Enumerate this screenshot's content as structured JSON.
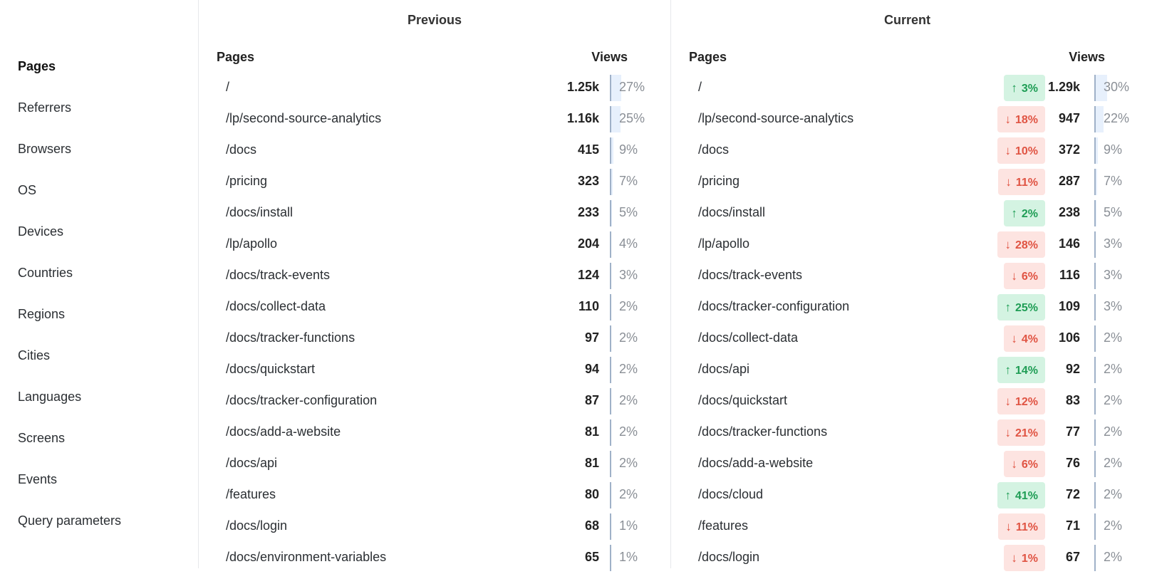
{
  "sidebar": {
    "items": [
      {
        "label": "Pages",
        "active": true
      },
      {
        "label": "Referrers"
      },
      {
        "label": "Browsers"
      },
      {
        "label": "OS"
      },
      {
        "label": "Devices"
      },
      {
        "label": "Countries"
      },
      {
        "label": "Regions"
      },
      {
        "label": "Cities"
      },
      {
        "label": "Languages"
      },
      {
        "label": "Screens"
      },
      {
        "label": "Events"
      },
      {
        "label": "Query parameters"
      }
    ]
  },
  "previous": {
    "title": "Previous",
    "col_pages": "Pages",
    "col_views": "Views",
    "rows": [
      {
        "path": "/",
        "views": "1.25k",
        "pct": "27%",
        "share": 27
      },
      {
        "path": "/lp/second-source-analytics",
        "views": "1.16k",
        "pct": "25%",
        "share": 25
      },
      {
        "path": "/docs",
        "views": "415",
        "pct": "9%",
        "share": 9
      },
      {
        "path": "/pricing",
        "views": "323",
        "pct": "7%",
        "share": 7
      },
      {
        "path": "/docs/install",
        "views": "233",
        "pct": "5%",
        "share": 5
      },
      {
        "path": "/lp/apollo",
        "views": "204",
        "pct": "4%",
        "share": 4
      },
      {
        "path": "/docs/track-events",
        "views": "124",
        "pct": "3%",
        "share": 3
      },
      {
        "path": "/docs/collect-data",
        "views": "110",
        "pct": "2%",
        "share": 2
      },
      {
        "path": "/docs/tracker-functions",
        "views": "97",
        "pct": "2%",
        "share": 2
      },
      {
        "path": "/docs/quickstart",
        "views": "94",
        "pct": "2%",
        "share": 2
      },
      {
        "path": "/docs/tracker-configuration",
        "views": "87",
        "pct": "2%",
        "share": 2
      },
      {
        "path": "/docs/add-a-website",
        "views": "81",
        "pct": "2%",
        "share": 2
      },
      {
        "path": "/docs/api",
        "views": "81",
        "pct": "2%",
        "share": 2
      },
      {
        "path": "/features",
        "views": "80",
        "pct": "2%",
        "share": 2
      },
      {
        "path": "/docs/login",
        "views": "68",
        "pct": "1%",
        "share": 1
      },
      {
        "path": "/docs/environment-variables",
        "views": "65",
        "pct": "1%",
        "share": 1
      }
    ]
  },
  "current": {
    "title": "Current",
    "col_pages": "Pages",
    "col_views": "Views",
    "rows": [
      {
        "path": "/",
        "change": "3%",
        "dir": "up",
        "views": "1.29k",
        "pct": "30%",
        "share": 30
      },
      {
        "path": "/lp/second-source-analytics",
        "change": "18%",
        "dir": "down",
        "views": "947",
        "pct": "22%",
        "share": 22
      },
      {
        "path": "/docs",
        "change": "10%",
        "dir": "down",
        "views": "372",
        "pct": "9%",
        "share": 9
      },
      {
        "path": "/pricing",
        "change": "11%",
        "dir": "down",
        "views": "287",
        "pct": "7%",
        "share": 7
      },
      {
        "path": "/docs/install",
        "change": "2%",
        "dir": "up",
        "views": "238",
        "pct": "5%",
        "share": 5
      },
      {
        "path": "/lp/apollo",
        "change": "28%",
        "dir": "down",
        "views": "146",
        "pct": "3%",
        "share": 3
      },
      {
        "path": "/docs/track-events",
        "change": "6%",
        "dir": "down",
        "views": "116",
        "pct": "3%",
        "share": 3
      },
      {
        "path": "/docs/tracker-configuration",
        "change": "25%",
        "dir": "up",
        "views": "109",
        "pct": "3%",
        "share": 3
      },
      {
        "path": "/docs/collect-data",
        "change": "4%",
        "dir": "down",
        "views": "106",
        "pct": "2%",
        "share": 2
      },
      {
        "path": "/docs/api",
        "change": "14%",
        "dir": "up",
        "views": "92",
        "pct": "2%",
        "share": 2
      },
      {
        "path": "/docs/quickstart",
        "change": "12%",
        "dir": "down",
        "views": "83",
        "pct": "2%",
        "share": 2
      },
      {
        "path": "/docs/tracker-functions",
        "change": "21%",
        "dir": "down",
        "views": "77",
        "pct": "2%",
        "share": 2
      },
      {
        "path": "/docs/add-a-website",
        "change": "6%",
        "dir": "down",
        "views": "76",
        "pct": "2%",
        "share": 2
      },
      {
        "path": "/docs/cloud",
        "change": "41%",
        "dir": "up",
        "views": "72",
        "pct": "2%",
        "share": 2
      },
      {
        "path": "/features",
        "change": "11%",
        "dir": "down",
        "views": "71",
        "pct": "2%",
        "share": 2
      },
      {
        "path": "/docs/login",
        "change": "1%",
        "dir": "down",
        "views": "67",
        "pct": "2%",
        "share": 2
      }
    ]
  },
  "colors": {
    "up_bg": "#d4f3e2",
    "up_text": "#1f9d55",
    "down_bg": "#fde4e1",
    "down_text": "#e05443",
    "bar": "#e7f0fc"
  },
  "icons": {
    "up": "arrow-up-icon",
    "down": "arrow-down-icon"
  }
}
